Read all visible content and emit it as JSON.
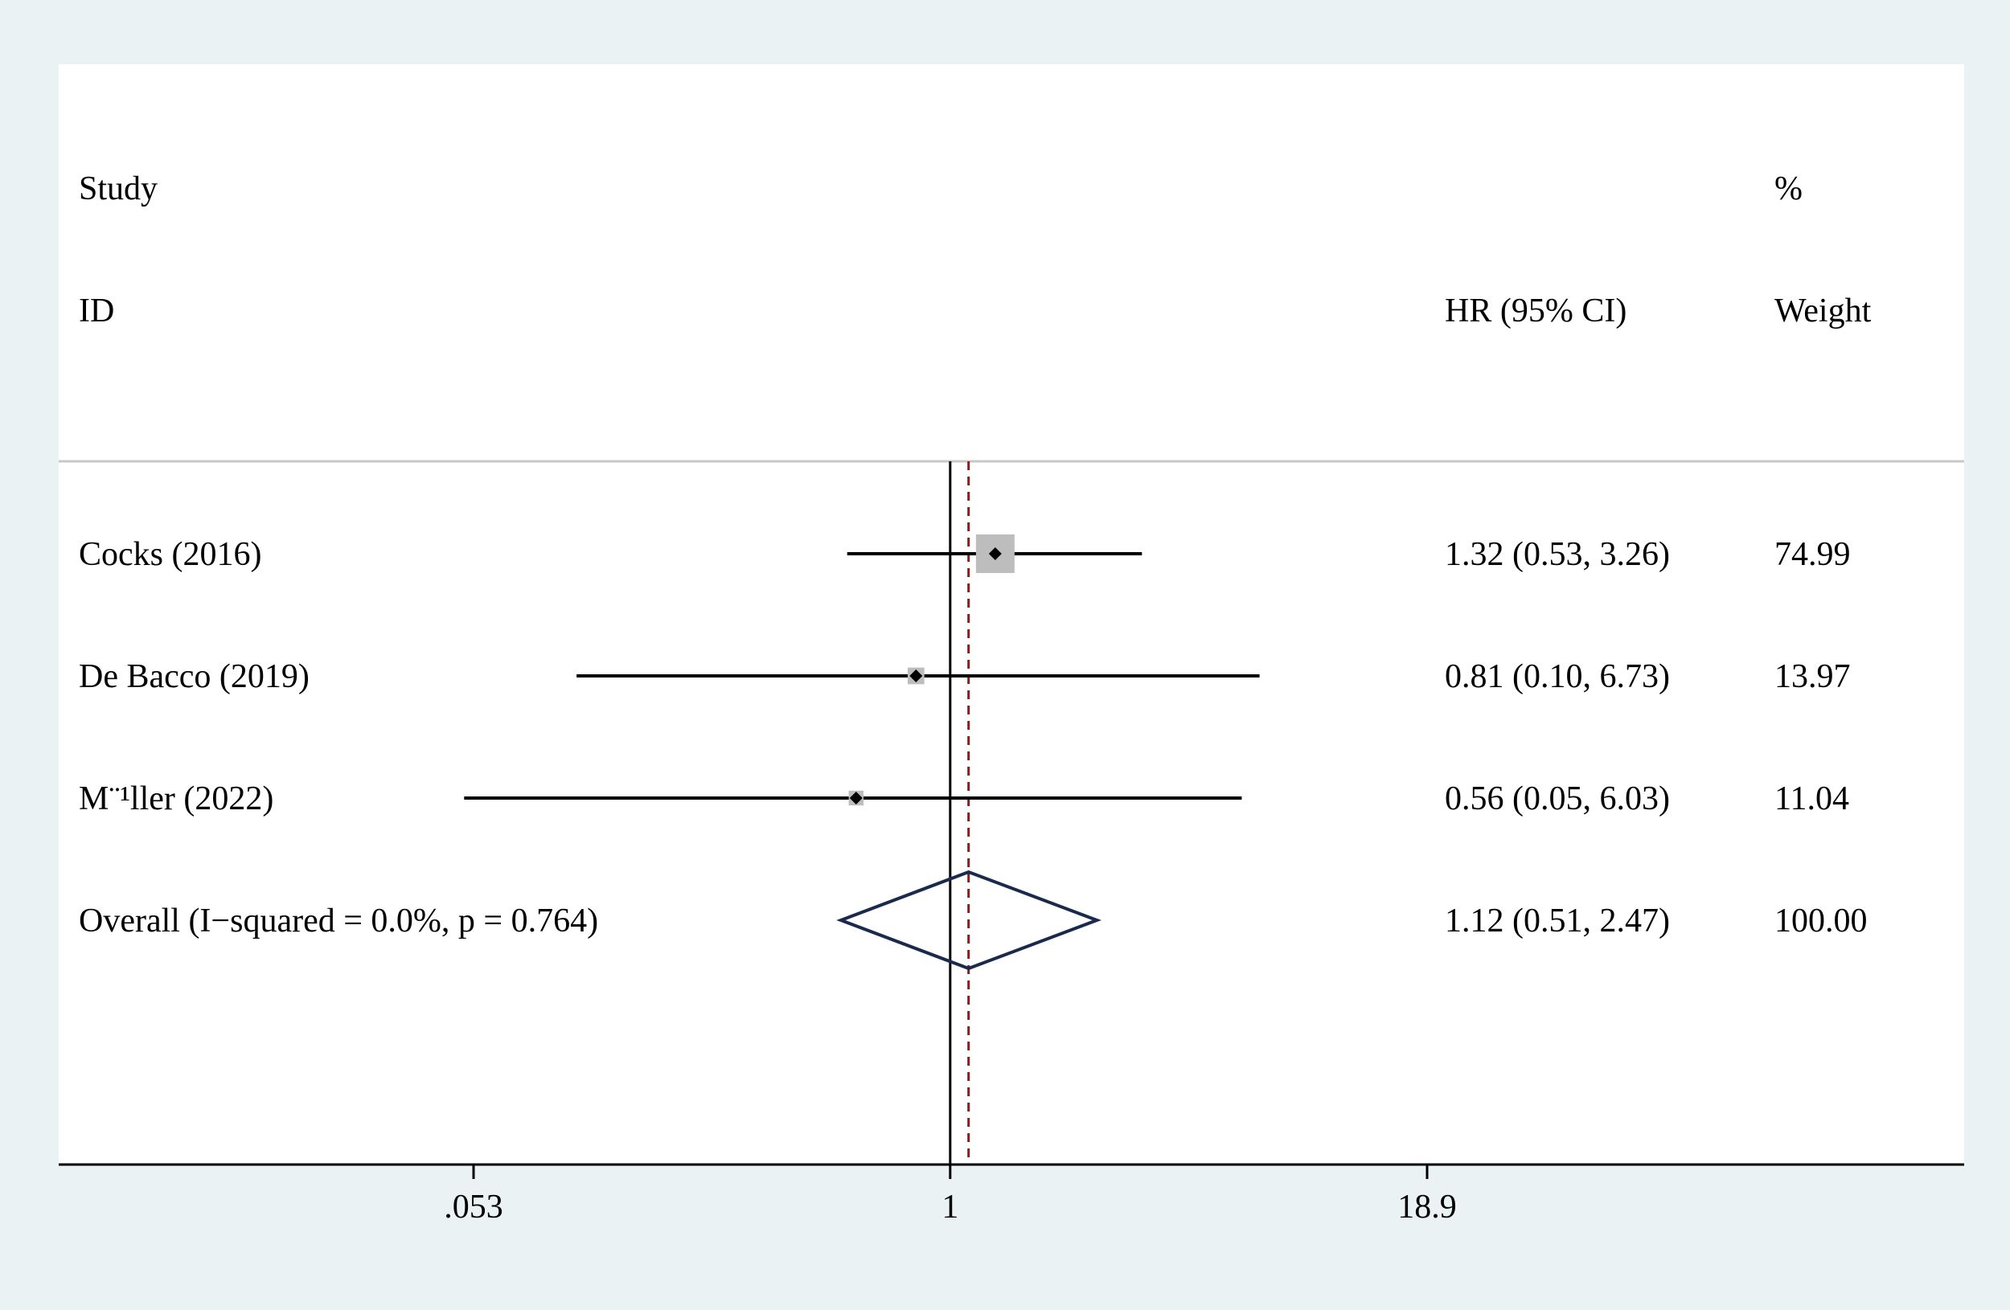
{
  "chart_data": {
    "type": "forest",
    "headers": {
      "study_line1": "Study",
      "study_line2": "ID",
      "effect": "HR (95% CI)",
      "weight_line1": "%",
      "weight_line2": "Weight"
    },
    "studies": [
      {
        "label": "Cocks (2016)",
        "hr": 1.32,
        "lower": 0.53,
        "upper": 3.26,
        "ci_text": "1.32 (0.53, 3.26)",
        "weight": 74.99,
        "weight_text": "74.99"
      },
      {
        "label": "De Bacco (2019)",
        "hr": 0.81,
        "lower": 0.1,
        "upper": 6.73,
        "ci_text": "0.81 (0.10, 6.73)",
        "weight": 13.97,
        "weight_text": "13.97"
      },
      {
        "label": "M¨¹ller (2022)",
        "hr": 0.56,
        "lower": 0.05,
        "upper": 6.03,
        "ci_text": "0.56 (0.05, 6.03)",
        "weight": 11.04,
        "weight_text": "11.04"
      }
    ],
    "overall": {
      "label": "Overall  (I−squared = 0.0%, p = 0.764)",
      "hr": 1.12,
      "lower": 0.51,
      "upper": 2.47,
      "ci_text": "1.12 (0.51, 2.47)",
      "weight_text": "100.00"
    },
    "x_axis": {
      "scale": "log",
      "ticks": [
        0.053,
        1,
        18.9
      ],
      "tick_labels": [
        ".053",
        "1",
        "18.9"
      ],
      "reference_value": 1
    },
    "colors": {
      "background": "#eaf2f3",
      "panel": "#ffffff",
      "ci_line": "#000000",
      "weight_box": "#bdbdbd",
      "point": "#000000",
      "overall_diamond": "#1a2a4f",
      "overall_line": "#8b1a1a",
      "header_rule": "#c8c8c8"
    }
  }
}
